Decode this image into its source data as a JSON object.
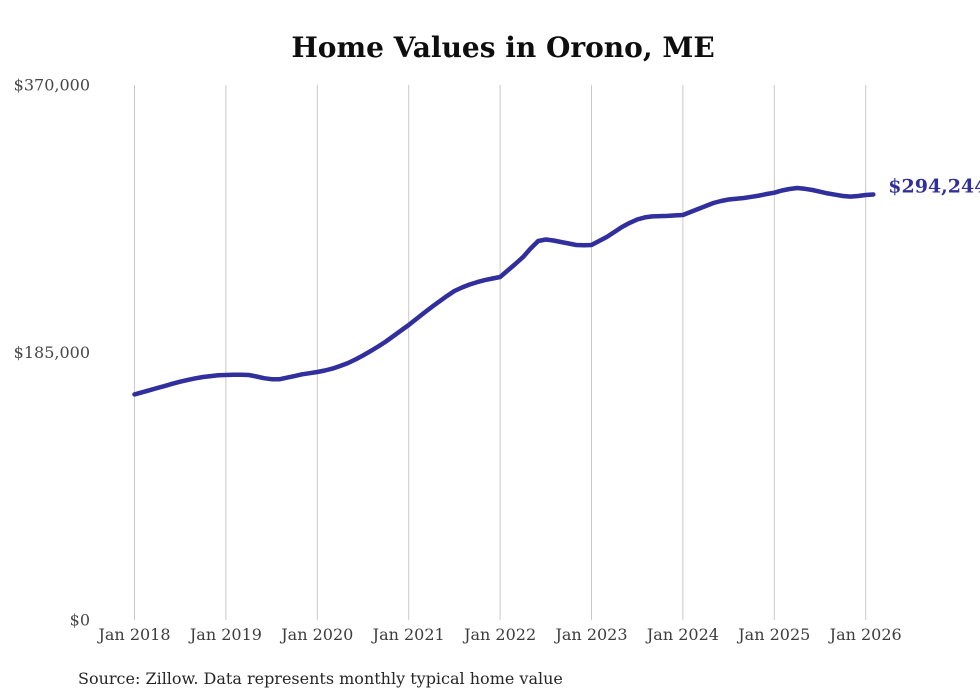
{
  "page": {
    "title": "Home Values in Orono, ME"
  },
  "chart_data": {
    "type": "line",
    "title": "Home Values in Orono, ME",
    "xlabel": "",
    "ylabel": "",
    "ylim": [
      0,
      370000
    ],
    "grid": "vertical-only",
    "legend": "none",
    "line_color": "#312f9d",
    "end_label": "$294,244",
    "end_value": 294244,
    "source": "Source: Zillow. Data represents monthly typical home value",
    "x_ticks": [
      "Jan 2018",
      "Jan 2019",
      "Jan 2020",
      "Jan 2021",
      "Jan 2022",
      "Jan 2023",
      "Jan 2024",
      "Jan 2025",
      "Jan 2026"
    ],
    "x_tick_interval_months": 12,
    "y_ticks": [
      {
        "label": "$0",
        "value": 0
      },
      {
        "label": "$185,000",
        "value": 185000
      },
      {
        "label": "$370,000",
        "value": 370000
      }
    ],
    "series": [
      {
        "name": "Typical home value",
        "start": "Jan 2018",
        "frequency": "monthly",
        "values": [
          156000,
          157500,
          158900,
          160450,
          161900,
          163400,
          164800,
          166050,
          167150,
          168050,
          168700,
          169200,
          169450,
          169600,
          169650,
          169450,
          168400,
          167200,
          166550,
          166500,
          167550,
          168650,
          169950,
          170700,
          171500,
          172550,
          173900,
          175650,
          177700,
          180150,
          182900,
          186000,
          189150,
          192600,
          196400,
          200200,
          204000,
          208150,
          212300,
          216400,
          220200,
          224000,
          227500,
          229950,
          232000,
          233700,
          235100,
          236150,
          237200,
          241700,
          246200,
          251000,
          256900,
          262100,
          263150,
          262450,
          261400,
          260400,
          259350,
          259200,
          259350,
          262100,
          264900,
          268350,
          271800,
          274600,
          277000,
          278400,
          279100,
          279300,
          279450,
          279800,
          280100,
          282200,
          284250,
          286300,
          288400,
          289800,
          290800,
          291350,
          291850,
          292700,
          293500,
          294600,
          295500,
          297050,
          298100,
          298800,
          298200,
          297400,
          296200,
          295000,
          294100,
          293250,
          292800,
          293250,
          293900,
          294244
        ]
      }
    ]
  }
}
